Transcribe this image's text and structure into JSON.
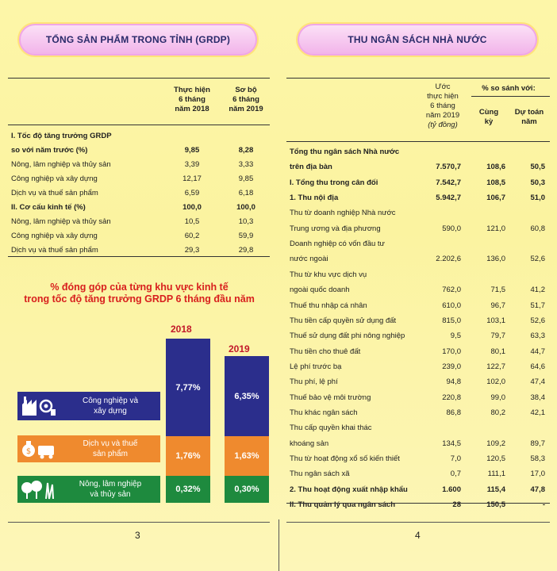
{
  "left": {
    "banner": "TỔNG SẢN PHẨM TRONG TỈNH (GRDP)",
    "col_head": {
      "a": [
        "Thực hiện",
        "6 tháng",
        "năm 2018"
      ],
      "b": [
        "Sơ bộ",
        "6 tháng",
        "năm 2019"
      ]
    },
    "rows": [
      {
        "label": "I. Tốc độ tăng trưởng GRDP",
        "a": "",
        "b": "",
        "bold": true
      },
      {
        "label": "so với năm trước (%)",
        "a": "9,85",
        "b": "8,28",
        "bold": true
      },
      {
        "label": "Nông, lâm nghiệp và thủy sản",
        "a": "3,39",
        "b": "3,33"
      },
      {
        "label": "Công nghiệp và xây dựng",
        "a": "12,17",
        "b": "9,85"
      },
      {
        "label": "Dịch vụ và thuế sản phẩm",
        "a": "6,59",
        "b": "6,18"
      },
      {
        "label": "II. Cơ cấu  kinh tế (%)",
        "a": "100,0",
        "b": "100,0",
        "bold": true
      },
      {
        "label": "Nông, lâm nghiệp và thủy sản",
        "a": "10,5",
        "b": "10,3"
      },
      {
        "label": "Công nghiệp và xây dựng",
        "a": "60,2",
        "b": "59,9"
      },
      {
        "label": "Dịch vụ và thuế sản phẩm",
        "a": "29,3",
        "b": "29,8"
      }
    ],
    "chart_title": [
      "% đóng góp của từng khu vực kinh tế",
      "trong tốc độ tăng trưởng GRDP 6 tháng đầu năm"
    ],
    "legend": [
      {
        "label": [
          "Công nghiệp và",
          "xây dựng"
        ],
        "color": "#2b2e8c",
        "icon": "factory-icon"
      },
      {
        "label": [
          "Dịch vụ và thuế",
          "sản phẩm"
        ],
        "color": "#ef8a2e",
        "icon": "money-bag-icon"
      },
      {
        "label": [
          "Nông, lâm nghiệp",
          "và thủy sản"
        ],
        "color": "#1e8a3e",
        "icon": "trees-icon"
      }
    ],
    "page_number": "3"
  },
  "chart_data": {
    "type": "bar",
    "categories": [
      "2018",
      "2019"
    ],
    "series": [
      {
        "name": "Nông, lâm nghiệp và thủy sản",
        "values": [
          0.32,
          0.3
        ],
        "labels": [
          "0,32%",
          "0,30%"
        ],
        "color": "#1e8a3e"
      },
      {
        "name": "Dịch vụ và thuế sản phẩm",
        "values": [
          1.76,
          1.63
        ],
        "labels": [
          "1,76%",
          "1,63%"
        ],
        "color": "#ef8a2e"
      },
      {
        "name": "Công nghiệp và xây dựng",
        "values": [
          7.77,
          6.35
        ],
        "labels": [
          "7,77%",
          "6,35%"
        ],
        "color": "#2b2e8c"
      }
    ],
    "stacked": true
  },
  "right": {
    "banner": "THU NGÂN SÁCH NHÀ NƯỚC",
    "col_head": {
      "a": [
        "Ước",
        "thực hiện",
        "6 tháng",
        "năm 2019"
      ],
      "a_unit": "(tỷ đồng)",
      "group": "% so sánh với:",
      "b": [
        "Cùng",
        "kỳ"
      ],
      "c": [
        "Dự toán",
        "năm"
      ]
    },
    "rows": [
      {
        "label": "Tổng thu ngân sách Nhà nước",
        "a": "",
        "b": "",
        "c": "",
        "bold": true
      },
      {
        "label": "trên địa bàn",
        "a": "7.570,7",
        "b": "108,6",
        "c": "50,5",
        "bold": true
      },
      {
        "label": "I. Tổng thu trong cân đối",
        "a": "7.542,7",
        "b": "108,5",
        "c": "50,3",
        "bold": true
      },
      {
        "label": "1. Thu nội địa",
        "a": "5.942,7",
        "b": "106,7",
        "c": "51,0",
        "bold": true
      },
      {
        "label": "Thu từ doanh nghiệp Nhà nước",
        "a": "",
        "b": "",
        "c": ""
      },
      {
        "label": "Trung ương và địa phương",
        "a": "590,0",
        "b": "121,0",
        "c": "60,8"
      },
      {
        "label": "Doanh nghiệp có vốn đầu tư",
        "a": "",
        "b": "",
        "c": ""
      },
      {
        "label": "nước ngoài",
        "a": "2.202,6",
        "b": "136,0",
        "c": "52,6"
      },
      {
        "label": "Thu từ khu vực dịch vụ",
        "a": "",
        "b": "",
        "c": ""
      },
      {
        "label": "ngoài quốc doanh",
        "a": "762,0",
        "b": "71,5",
        "c": "41,2"
      },
      {
        "label": "Thuế thu nhập cá nhân",
        "a": "610,0",
        "b": "96,7",
        "c": "51,7"
      },
      {
        "label": "Thu tiền cấp quyền sử dụng đất",
        "a": "815,0",
        "b": "103,1",
        "c": "52,6"
      },
      {
        "label": "Thuế sử dụng đất phi nông nghiệp",
        "a": "9,5",
        "b": "79,7",
        "c": "63,3"
      },
      {
        "label": "Thu tiền cho thuê đất",
        "a": "170,0",
        "b": "80,1",
        "c": "44,7"
      },
      {
        "label": "Lệ phí trước bạ",
        "a": "239,0",
        "b": "122,7",
        "c": "64,6"
      },
      {
        "label": "Thu phí, lệ phí",
        "a": "94,8",
        "b": "102,0",
        "c": "47,4"
      },
      {
        "label": "Thuế bảo vệ môi trường",
        "a": "220,8",
        "b": "99,0",
        "c": "38,4"
      },
      {
        "label": "Thu khác ngân sách",
        "a": "86,8",
        "b": "80,2",
        "c": "42,1"
      },
      {
        "label": "Thu cấp quyền khai thác",
        "a": "",
        "b": "",
        "c": ""
      },
      {
        "label": "khoáng sản",
        "a": "134,5",
        "b": "109,2",
        "c": "89,7"
      },
      {
        "label": "Thu từ hoạt động xổ số kiến thiết",
        "a": "7,0",
        "b": "120,5",
        "c": "58,3"
      },
      {
        "label": "Thu ngân sách xã",
        "a": "0,7",
        "b": "111,1",
        "c": "17,0"
      },
      {
        "label": "2. Thu hoạt động xuất nhập  khẩu",
        "a": "1.600",
        "b": "115,4",
        "c": "47,8",
        "bold": true
      },
      {
        "label": "II. Thu quản lý qua ngân sách",
        "a": "28",
        "b": "150,5",
        "c": "-",
        "bold": true
      }
    ],
    "page_number": "4"
  }
}
